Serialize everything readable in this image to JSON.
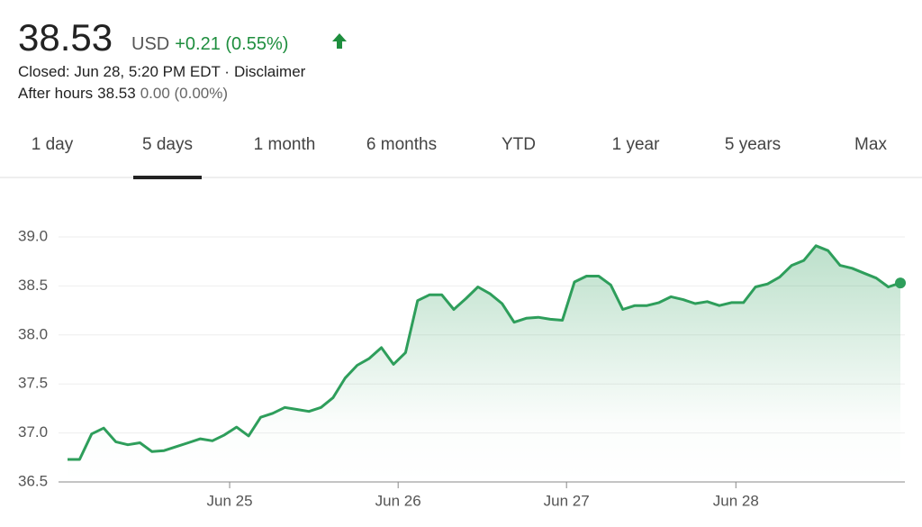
{
  "quote": {
    "price": "38.53",
    "currency": "USD",
    "change": "+0.21 (0.55%)",
    "status": "Closed: Jun 28, 5:20 PM EDT ·",
    "disclaimer": "Disclaimer",
    "after_hours_label": "After hours",
    "after_hours_price": "38.53",
    "after_hours_change": "0.00 (0.00%)"
  },
  "tabs": [
    "1 day",
    "5 days",
    "1 month",
    "6 months",
    "YTD",
    "1 year",
    "5 years",
    "Max"
  ],
  "active_tab": 1,
  "chart_data": {
    "type": "line",
    "color": "#2e9e5b",
    "grid": true,
    "x": [
      0,
      1,
      2,
      3,
      4,
      5,
      6,
      7,
      8,
      9,
      10,
      11,
      12,
      13,
      14,
      15,
      16,
      17,
      18,
      19,
      20,
      21,
      22,
      23,
      24,
      25,
      26,
      27,
      28,
      29,
      30,
      31,
      32,
      33,
      34,
      35,
      36,
      37,
      38,
      39,
      40,
      41,
      42,
      43,
      44,
      45,
      46,
      47,
      48,
      49,
      50,
      51,
      52,
      53,
      54,
      55,
      56,
      57,
      58,
      59,
      60,
      61,
      62,
      63,
      64,
      65,
      66,
      67,
      68,
      69
    ],
    "values": [
      36.73,
      36.73,
      36.99,
      37.05,
      36.91,
      36.88,
      36.9,
      36.81,
      36.82,
      36.86,
      36.9,
      36.94,
      36.92,
      36.98,
      37.06,
      36.97,
      37.16,
      37.2,
      37.26,
      37.24,
      37.22,
      37.26,
      37.36,
      37.56,
      37.69,
      37.76,
      37.87,
      37.7,
      37.82,
      38.35,
      38.41,
      38.41,
      38.26,
      38.37,
      38.49,
      38.42,
      38.32,
      38.13,
      38.17,
      38.18,
      38.16,
      38.15,
      38.54,
      38.6,
      38.6,
      38.51,
      38.26,
      38.3,
      38.3,
      38.33,
      38.39,
      38.36,
      38.32,
      38.34,
      38.3,
      38.33,
      38.33,
      38.49,
      38.52,
      38.59,
      38.71,
      38.76,
      38.91,
      38.86,
      38.71,
      38.68,
      38.63,
      38.58,
      38.49,
      38.53
    ],
    "xlim": [
      0,
      69
    ],
    "xticks": [
      {
        "value": 13.43,
        "label": "Jun 25"
      },
      {
        "value": 27.39,
        "label": "Jun 26"
      },
      {
        "value": 41.34,
        "label": "Jun 27"
      },
      {
        "value": 55.37,
        "label": "Jun 28"
      }
    ],
    "ylim": [
      36.5,
      39
    ],
    "yticks": [
      36.5,
      {
        "value": 37,
        "label": "37.0"
      },
      37.5,
      {
        "value": 38,
        "label": "38.0"
      },
      38.5,
      {
        "value": 39,
        "label": "39.0"
      }
    ]
  }
}
